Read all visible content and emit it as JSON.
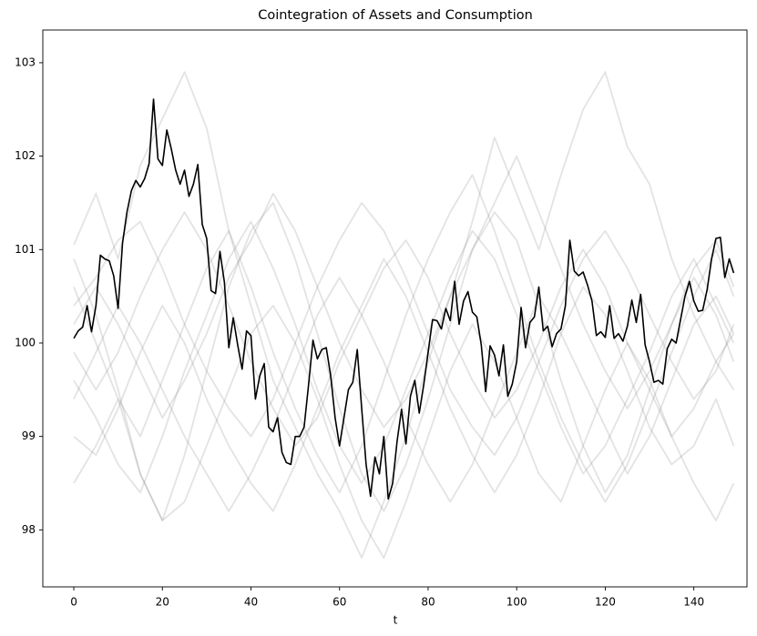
{
  "chart_data": {
    "type": "line",
    "title": "Cointegration of Assets and Consumption",
    "x_label": "t",
    "xlim": [
      -7,
      152
    ],
    "ylim": [
      97.39,
      103.35
    ],
    "xticks": [
      0,
      20,
      40,
      60,
      80,
      100,
      120,
      140
    ],
    "yticks": [
      98,
      99,
      100,
      101,
      102,
      103
    ],
    "grid": false,
    "series": [
      {
        "color": "#808080",
        "alpha": 0.22,
        "x": [
          0,
          5,
          10,
          15,
          20,
          25,
          30,
          35,
          40,
          45,
          50,
          55,
          60,
          65,
          70,
          75,
          80,
          85,
          90,
          95,
          100,
          105,
          110,
          115,
          120,
          125,
          130,
          135,
          140,
          145,
          149
        ],
        "values": [
          101.05,
          101.6,
          100.9,
          101.9,
          102.4,
          102.9,
          102.3,
          101.2,
          100.4,
          99.6,
          99.1,
          98.6,
          98.2,
          97.7,
          98.3,
          99.0,
          99.8,
          100.5,
          101.3,
          102.2,
          101.6,
          101.0,
          101.8,
          102.5,
          102.9,
          102.1,
          101.7,
          100.9,
          100.3,
          99.8,
          99.5
        ]
      },
      {
        "color": "#808080",
        "alpha": 0.22,
        "x": [
          0,
          5,
          10,
          15,
          20,
          25,
          30,
          35,
          40,
          45,
          50,
          55,
          60,
          65,
          70,
          75,
          80,
          85,
          90,
          95,
          100,
          105,
          110,
          115,
          120,
          125,
          130,
          135,
          140,
          145,
          149
        ],
        "values": [
          100.9,
          100.3,
          99.5,
          98.6,
          98.1,
          98.8,
          99.7,
          100.6,
          101.2,
          101.5,
          100.9,
          100.1,
          99.3,
          98.6,
          98.2,
          98.7,
          99.4,
          100.2,
          101.0,
          101.4,
          101.1,
          100.4,
          99.6,
          98.9,
          98.4,
          98.8,
          99.5,
          100.2,
          100.8,
          101.1,
          100.6
        ]
      },
      {
        "color": "#808080",
        "alpha": 0.22,
        "x": [
          0,
          5,
          10,
          15,
          20,
          25,
          30,
          35,
          40,
          45,
          50,
          55,
          60,
          65,
          70,
          75,
          80,
          85,
          90,
          95,
          100,
          105,
          110,
          115,
          120,
          125,
          130,
          135,
          140,
          145,
          149
        ],
        "values": [
          99.6,
          99.2,
          98.7,
          98.4,
          99.0,
          99.7,
          100.3,
          100.9,
          101.3,
          100.8,
          100.2,
          99.5,
          98.9,
          98.5,
          98.9,
          99.5,
          100.1,
          100.7,
          101.2,
          100.9,
          100.3,
          99.7,
          99.1,
          98.6,
          98.9,
          99.4,
          99.9,
          100.5,
          100.9,
          100.4,
          100.0
        ]
      },
      {
        "color": "#808080",
        "alpha": 0.22,
        "x": [
          0,
          5,
          10,
          15,
          20,
          25,
          30,
          35,
          40,
          45,
          50,
          55,
          60,
          65,
          70,
          75,
          80,
          85,
          90,
          95,
          100,
          105,
          110,
          115,
          120,
          125,
          130,
          135,
          140,
          145,
          149
        ],
        "values": [
          98.5,
          98.9,
          99.4,
          98.6,
          98.1,
          98.3,
          98.9,
          99.5,
          100.1,
          100.4,
          100.0,
          99.4,
          98.7,
          98.1,
          97.7,
          98.3,
          99.0,
          99.7,
          100.2,
          99.8,
          99.2,
          98.6,
          98.3,
          98.9,
          99.5,
          100.0,
          99.6,
          99.0,
          98.5,
          98.1,
          98.5
        ]
      },
      {
        "color": "#808080",
        "alpha": 0.22,
        "x": [
          0,
          5,
          10,
          15,
          20,
          25,
          30,
          35,
          40,
          45,
          50,
          55,
          60,
          65,
          70,
          75,
          80,
          85,
          90,
          95,
          100,
          105,
          110,
          115,
          120,
          125,
          130,
          135,
          140,
          145,
          149
        ],
        "values": [
          100.4,
          100.7,
          101.1,
          101.3,
          100.8,
          100.2,
          99.7,
          99.3,
          99.0,
          99.4,
          100.0,
          100.6,
          101.1,
          101.5,
          101.2,
          100.7,
          100.1,
          99.5,
          99.1,
          98.8,
          99.2,
          99.8,
          100.4,
          100.9,
          101.2,
          100.8,
          100.3,
          99.8,
          99.4,
          99.7,
          100.2
        ]
      },
      {
        "color": "#808080",
        "alpha": 0.22,
        "x": [
          0,
          5,
          10,
          15,
          20,
          25,
          30,
          35,
          40,
          45,
          50,
          55,
          60,
          65,
          70,
          75,
          80,
          85,
          90,
          95,
          100,
          105,
          110,
          115,
          120,
          125,
          130,
          135,
          140,
          145,
          149
        ],
        "values": [
          99.9,
          99.5,
          99.9,
          100.5,
          101.0,
          101.4,
          101.0,
          100.4,
          99.8,
          99.3,
          98.9,
          99.2,
          99.8,
          100.3,
          100.8,
          101.1,
          100.7,
          100.1,
          99.6,
          99.2,
          99.5,
          100.0,
          100.6,
          101.0,
          100.6,
          100.0,
          99.5,
          99.0,
          99.3,
          99.8,
          100.1
        ]
      },
      {
        "color": "#808080",
        "alpha": 0.22,
        "x": [
          0,
          5,
          10,
          15,
          20,
          25,
          30,
          35,
          40,
          45,
          50,
          55,
          60,
          65,
          70,
          75,
          80,
          85,
          90,
          95,
          100,
          105,
          110,
          115,
          120,
          125,
          130,
          135,
          140,
          145,
          149
        ],
        "values": [
          100.6,
          100.0,
          99.4,
          99.0,
          99.6,
          100.2,
          100.8,
          101.2,
          100.6,
          99.9,
          99.3,
          98.8,
          98.4,
          98.9,
          99.6,
          100.3,
          100.9,
          101.4,
          101.8,
          101.2,
          100.5,
          99.8,
          99.2,
          98.7,
          98.3,
          98.7,
          99.3,
          99.9,
          100.5,
          101.0,
          100.5
        ]
      },
      {
        "color": "#808080",
        "alpha": 0.22,
        "x": [
          0,
          5,
          10,
          15,
          20,
          25,
          30,
          35,
          40,
          45,
          50,
          55,
          60,
          65,
          70,
          75,
          80,
          85,
          90,
          95,
          100,
          105,
          110,
          115,
          120,
          125,
          130,
          135,
          140,
          145,
          149
        ],
        "values": [
          99.0,
          98.8,
          99.3,
          99.9,
          100.4,
          100.0,
          99.4,
          98.9,
          98.5,
          98.2,
          98.7,
          99.3,
          99.9,
          100.4,
          100.9,
          100.5,
          99.9,
          99.3,
          98.8,
          98.4,
          98.8,
          99.4,
          100.1,
          100.6,
          100.3,
          99.7,
          99.1,
          98.7,
          98.9,
          99.4,
          98.9
        ]
      },
      {
        "color": "#808080",
        "alpha": 0.22,
        "x": [
          0,
          5,
          10,
          15,
          20,
          25,
          30,
          35,
          40,
          45,
          50,
          55,
          60,
          65,
          70,
          75,
          80,
          85,
          90,
          95,
          100,
          105,
          110,
          115,
          120,
          125,
          130,
          135,
          140,
          145,
          149
        ],
        "values": [
          100.2,
          100.6,
          100.2,
          99.7,
          99.2,
          99.6,
          100.1,
          100.7,
          101.1,
          101.6,
          101.2,
          100.6,
          100.0,
          99.5,
          99.1,
          99.4,
          99.9,
          100.5,
          101.0,
          101.5,
          102.0,
          101.4,
          100.8,
          100.2,
          99.7,
          99.3,
          99.7,
          100.2,
          100.7,
          100.3,
          99.8
        ]
      },
      {
        "color": "#808080",
        "alpha": 0.22,
        "x": [
          0,
          5,
          10,
          15,
          20,
          25,
          30,
          35,
          40,
          45,
          50,
          55,
          60,
          65,
          70,
          75,
          80,
          85,
          90,
          95,
          100,
          105,
          110,
          115,
          120,
          125,
          130,
          135,
          140,
          145,
          149
        ],
        "values": [
          99.4,
          99.9,
          100.4,
          100.0,
          99.5,
          99.0,
          98.6,
          98.2,
          98.6,
          99.1,
          99.7,
          100.3,
          100.7,
          100.3,
          99.8,
          99.2,
          98.7,
          98.3,
          98.7,
          99.3,
          99.9,
          100.5,
          100.1,
          99.6,
          99.1,
          98.6,
          99.0,
          99.6,
          100.2,
          100.5,
          100.1
        ]
      },
      {
        "color": "#000000",
        "alpha": 1,
        "x": [
          0,
          1,
          2,
          3,
          4,
          5,
          6,
          7,
          8,
          9,
          10,
          11,
          12,
          13,
          14,
          15,
          16,
          17,
          18,
          19,
          20,
          21,
          22,
          23,
          24,
          25,
          26,
          27,
          28,
          29,
          30,
          31,
          32,
          33,
          34,
          35,
          36,
          37,
          38,
          39,
          40,
          41,
          42,
          43,
          44,
          45,
          46,
          47,
          48,
          49,
          50,
          51,
          52,
          53,
          54,
          55,
          56,
          57,
          58,
          59,
          60,
          61,
          62,
          63,
          64,
          65,
          66,
          67,
          68,
          69,
          70,
          71,
          72,
          73,
          74,
          75,
          76,
          77,
          78,
          79,
          80,
          81,
          82,
          83,
          84,
          85,
          86,
          87,
          88,
          89,
          90,
          91,
          92,
          93,
          94,
          95,
          96,
          97,
          98,
          99,
          100,
          101,
          102,
          103,
          104,
          105,
          106,
          107,
          108,
          109,
          110,
          111,
          112,
          113,
          114,
          115,
          116,
          117,
          118,
          119,
          120,
          121,
          122,
          123,
          124,
          125,
          126,
          127,
          128,
          129,
          130,
          131,
          132,
          133,
          134,
          135,
          136,
          137,
          138,
          139,
          140,
          141,
          142,
          143,
          144,
          145,
          146,
          147,
          148,
          149
        ],
        "values": [
          100.05,
          100.13,
          100.17,
          100.4,
          100.12,
          100.4,
          100.94,
          100.9,
          100.88,
          100.72,
          100.37,
          101.07,
          101.4,
          101.63,
          101.74,
          101.67,
          101.76,
          101.92,
          102.61,
          101.97,
          101.9,
          102.28,
          102.08,
          101.85,
          101.7,
          101.85,
          101.57,
          101.7,
          101.91,
          101.27,
          101.12,
          100.56,
          100.53,
          100.98,
          100.65,
          99.95,
          100.27,
          99.98,
          99.72,
          100.13,
          100.08,
          99.4,
          99.65,
          99.78,
          99.1,
          99.05,
          99.2,
          98.83,
          98.72,
          98.7,
          99.0,
          99.0,
          99.1,
          99.55,
          100.03,
          99.83,
          99.93,
          99.95,
          99.65,
          99.2,
          98.9,
          99.2,
          99.5,
          99.58,
          99.93,
          99.3,
          98.7,
          98.36,
          98.78,
          98.6,
          99.0,
          98.33,
          98.5,
          98.95,
          99.29,
          98.92,
          99.43,
          99.6,
          99.25,
          99.55,
          99.9,
          100.25,
          100.24,
          100.15,
          100.37,
          100.24,
          100.66,
          100.2,
          100.45,
          100.55,
          100.33,
          100.28,
          99.98,
          99.48,
          99.97,
          99.87,
          99.65,
          99.98,
          99.43,
          99.56,
          99.8,
          100.38,
          99.95,
          100.22,
          100.28,
          100.6,
          100.13,
          100.18,
          99.96,
          100.1,
          100.15,
          100.4,
          101.1,
          100.77,
          100.72,
          100.76,
          100.62,
          100.45,
          100.08,
          100.12,
          100.06,
          100.4,
          100.05,
          100.1,
          100.02,
          100.18,
          100.46,
          100.22,
          100.52,
          99.98,
          99.8,
          99.58,
          99.6,
          99.56,
          99.94,
          100.04,
          100.0,
          100.25,
          100.5,
          100.66,
          100.45,
          100.34,
          100.35,
          100.57,
          100.9,
          101.12,
          101.13,
          100.7,
          100.9,
          100.75
        ]
      }
    ]
  }
}
